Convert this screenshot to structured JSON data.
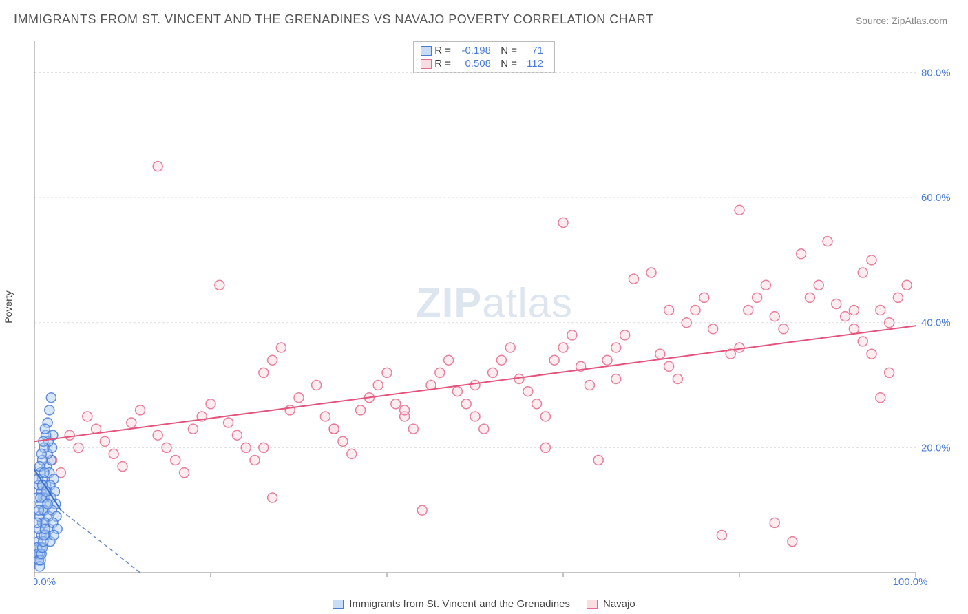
{
  "title": "IMMIGRANTS FROM ST. VINCENT AND THE GRENADINES VS NAVAJO POVERTY CORRELATION CHART",
  "source": "Source: ZipAtlas.com",
  "watermark_zip": "ZIP",
  "watermark_atlas": "atlas",
  "y_axis_label": "Poverty",
  "chart": {
    "type": "scatter",
    "xlim": [
      0,
      100
    ],
    "ylim": [
      0,
      85
    ],
    "y_ticks": [
      20,
      40,
      60,
      80
    ],
    "y_tick_labels": [
      "20.0%",
      "40.0%",
      "60.0%",
      "80.0%"
    ],
    "x_ticks": [
      0,
      20,
      40,
      60,
      80,
      100
    ],
    "x_origin_label": "0.0%",
    "x_end_label": "100.0%",
    "grid_color": "#dddddd",
    "axis_color": "#888888",
    "background_color": "#ffffff",
    "marker_radius": 7,
    "series": [
      {
        "name": "blue",
        "label": "Immigrants from St. Vincent and the Grenadines",
        "fill": "#a6c8f0",
        "stroke": "#4a7bd8",
        "R_label": "R =",
        "N_label": "N =",
        "R": "-0.198",
        "N": "71",
        "trend": {
          "x1": 0,
          "y1": 16.5,
          "x2": 3.0,
          "y2": 10.0,
          "dash_x2": 12.0,
          "dash_y2": -3.0
        },
        "points": [
          [
            0.5,
            2
          ],
          [
            0.6,
            3
          ],
          [
            0.4,
            5
          ],
          [
            0.7,
            4
          ],
          [
            0.8,
            6
          ],
          [
            0.5,
            7
          ],
          [
            0.9,
            8
          ],
          [
            0.6,
            9
          ],
          [
            1.0,
            10
          ],
          [
            0.7,
            11
          ],
          [
            1.2,
            12
          ],
          [
            0.8,
            13
          ],
          [
            1.3,
            14
          ],
          [
            0.9,
            15
          ],
          [
            1.4,
            13
          ],
          [
            1.0,
            12
          ],
          [
            1.5,
            11
          ],
          [
            1.1,
            10
          ],
          [
            1.6,
            9
          ],
          [
            1.2,
            8
          ],
          [
            1.7,
            7
          ],
          [
            1.3,
            6
          ],
          [
            1.8,
            5
          ],
          [
            1.4,
            17
          ],
          [
            1.9,
            18
          ],
          [
            1.5,
            19
          ],
          [
            2.0,
            20
          ],
          [
            1.6,
            21
          ],
          [
            2.1,
            22
          ],
          [
            1.7,
            16
          ],
          [
            2.2,
            15
          ],
          [
            1.8,
            14
          ],
          [
            2.3,
            13
          ],
          [
            1.9,
            12
          ],
          [
            2.4,
            11
          ],
          [
            2.0,
            10
          ],
          [
            2.5,
            9
          ],
          [
            2.1,
            8
          ],
          [
            2.6,
            7
          ],
          [
            2.2,
            6
          ],
          [
            0.3,
            4
          ],
          [
            0.4,
            3
          ],
          [
            0.5,
            2
          ],
          [
            0.6,
            1
          ],
          [
            0.7,
            2
          ],
          [
            0.8,
            3
          ],
          [
            0.9,
            4
          ],
          [
            1.0,
            5
          ],
          [
            1.1,
            6
          ],
          [
            1.2,
            7
          ],
          [
            0.3,
            12
          ],
          [
            0.5,
            14
          ],
          [
            0.7,
            16
          ],
          [
            0.9,
            18
          ],
          [
            1.1,
            20
          ],
          [
            1.3,
            22
          ],
          [
            1.5,
            24
          ],
          [
            1.7,
            26
          ],
          [
            1.9,
            28
          ],
          [
            0.4,
            15
          ],
          [
            0.6,
            17
          ],
          [
            0.8,
            19
          ],
          [
            1.0,
            21
          ],
          [
            1.2,
            23
          ],
          [
            0.3,
            8
          ],
          [
            0.5,
            10
          ],
          [
            0.7,
            12
          ],
          [
            0.9,
            14
          ],
          [
            1.1,
            16
          ],
          [
            1.3,
            13
          ],
          [
            1.5,
            11
          ]
        ]
      },
      {
        "name": "pink",
        "label": "Navajo",
        "fill": "#fbd5de",
        "stroke": "#e56a8c",
        "R_label": "R =",
        "N_label": "N =",
        "R": "0.508",
        "N": "112",
        "trend": {
          "x1": 0,
          "y1": 21.0,
          "x2": 100,
          "y2": 39.5
        },
        "points": [
          [
            2,
            18
          ],
          [
            3,
            16
          ],
          [
            4,
            22
          ],
          [
            5,
            20
          ],
          [
            6,
            25
          ],
          [
            7,
            23
          ],
          [
            8,
            21
          ],
          [
            9,
            19
          ],
          [
            10,
            17
          ],
          [
            11,
            24
          ],
          [
            12,
            26
          ],
          [
            14,
            65
          ],
          [
            14,
            22
          ],
          [
            15,
            20
          ],
          [
            16,
            18
          ],
          [
            17,
            16
          ],
          [
            18,
            23
          ],
          [
            19,
            25
          ],
          [
            20,
            27
          ],
          [
            21,
            46
          ],
          [
            22,
            24
          ],
          [
            23,
            22
          ],
          [
            24,
            20
          ],
          [
            25,
            18
          ],
          [
            26,
            32
          ],
          [
            27,
            34
          ],
          [
            28,
            36
          ],
          [
            29,
            26
          ],
          [
            30,
            28
          ],
          [
            27,
            12
          ],
          [
            32,
            30
          ],
          [
            33,
            25
          ],
          [
            34,
            23
          ],
          [
            35,
            21
          ],
          [
            36,
            19
          ],
          [
            37,
            26
          ],
          [
            38,
            28
          ],
          [
            39,
            30
          ],
          [
            40,
            32
          ],
          [
            41,
            27
          ],
          [
            42,
            25
          ],
          [
            43,
            23
          ],
          [
            44,
            10
          ],
          [
            45,
            30
          ],
          [
            46,
            32
          ],
          [
            47,
            34
          ],
          [
            48,
            29
          ],
          [
            49,
            27
          ],
          [
            50,
            25
          ],
          [
            51,
            23
          ],
          [
            52,
            32
          ],
          [
            53,
            34
          ],
          [
            54,
            36
          ],
          [
            55,
            31
          ],
          [
            56,
            29
          ],
          [
            57,
            27
          ],
          [
            58,
            25
          ],
          [
            59,
            34
          ],
          [
            60,
            36
          ],
          [
            61,
            38
          ],
          [
            60,
            56
          ],
          [
            62,
            33
          ],
          [
            63,
            30
          ],
          [
            64,
            18
          ],
          [
            65,
            34
          ],
          [
            66,
            36
          ],
          [
            67,
            38
          ],
          [
            68,
            47
          ],
          [
            70,
            48
          ],
          [
            71,
            35
          ],
          [
            72,
            33
          ],
          [
            73,
            31
          ],
          [
            74,
            40
          ],
          [
            75,
            42
          ],
          [
            76,
            44
          ],
          [
            77,
            39
          ],
          [
            78,
            6
          ],
          [
            79,
            35
          ],
          [
            80,
            58
          ],
          [
            81,
            42
          ],
          [
            82,
            44
          ],
          [
            83,
            46
          ],
          [
            84,
            41
          ],
          [
            85,
            39
          ],
          [
            84,
            8
          ],
          [
            86,
            5
          ],
          [
            88,
            44
          ],
          [
            89,
            46
          ],
          [
            90,
            53
          ],
          [
            91,
            43
          ],
          [
            92,
            41
          ],
          [
            93,
            39
          ],
          [
            94,
            48
          ],
          [
            95,
            50
          ],
          [
            96,
            42
          ],
          [
            97,
            40
          ],
          [
            98,
            44
          ],
          [
            99,
            46
          ],
          [
            97,
            32
          ],
          [
            96,
            28
          ],
          [
            95,
            35
          ],
          [
            94,
            37
          ],
          [
            93,
            42
          ],
          [
            87,
            51
          ],
          [
            80,
            36
          ],
          [
            72,
            42
          ],
          [
            66,
            31
          ],
          [
            58,
            20
          ],
          [
            50,
            30
          ],
          [
            42,
            26
          ],
          [
            34,
            23
          ],
          [
            26,
            20
          ]
        ]
      }
    ]
  },
  "legend": {
    "series1": "Immigrants from St. Vincent and the Grenadines",
    "series2": "Navajo"
  }
}
